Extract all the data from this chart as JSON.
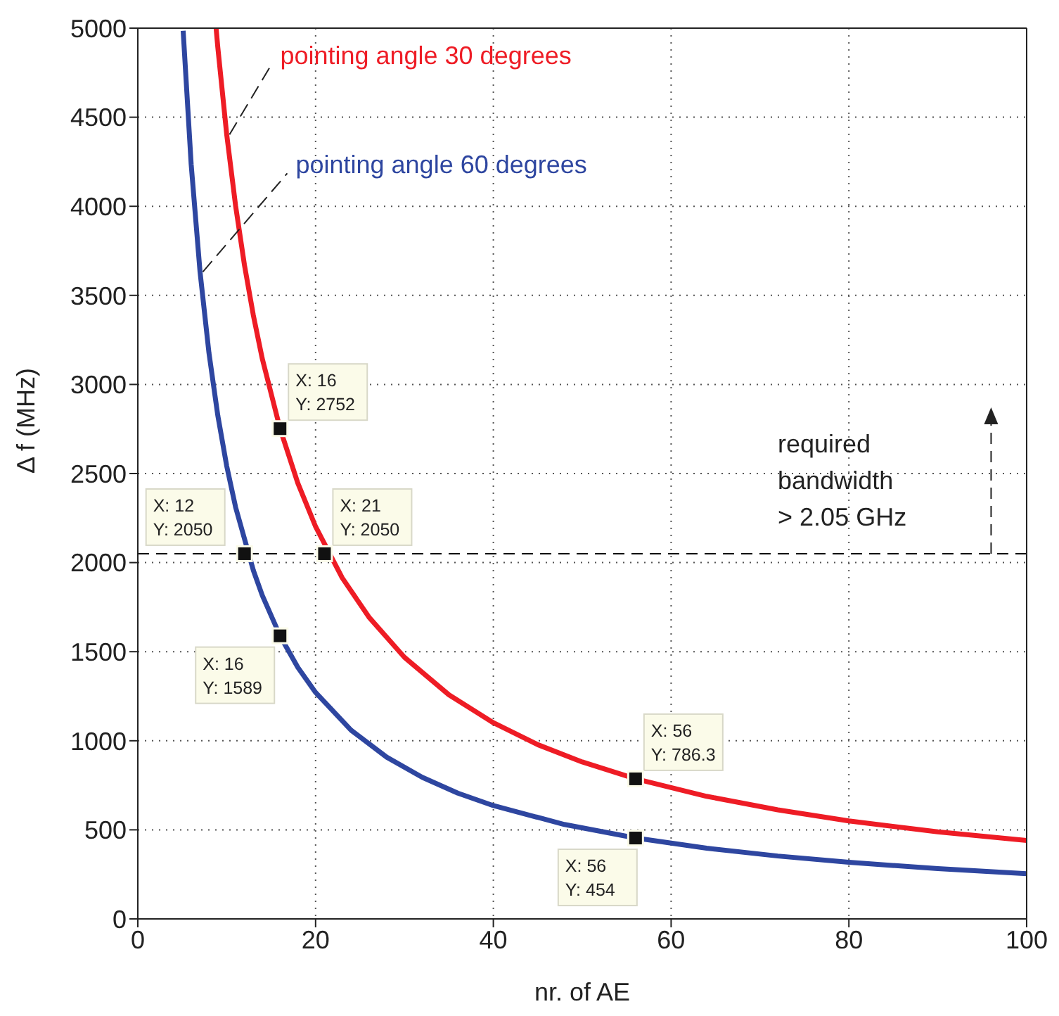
{
  "chart_data": {
    "type": "line",
    "xlabel": "nr. of AE",
    "ylabel": "Δ f (MHz)",
    "xlim": [
      0,
      100
    ],
    "xticks": [
      0,
      20,
      40,
      60,
      80,
      100
    ],
    "ylim": [
      0,
      5000
    ],
    "yticks": [
      0,
      500,
      1000,
      1500,
      2000,
      2500,
      3000,
      3500,
      4000,
      4500,
      5000
    ],
    "grid": true,
    "marker": "none",
    "line_style": "solid",
    "series": [
      {
        "name": "pointing angle 30 degrees",
        "color": "#ee1c25",
        "x": [
          8.81,
          9,
          10,
          11,
          12,
          13,
          14,
          16,
          18,
          20,
          23,
          26,
          30,
          35,
          40,
          45,
          50,
          56,
          64,
          72,
          80,
          90,
          100
        ],
        "values": [
          4998,
          4892,
          4403,
          4003,
          3669,
          3387,
          3145,
          2752,
          2446,
          2202,
          1914,
          1694,
          1468,
          1258,
          1101,
          978,
          881,
          786.3,
          688,
          612,
          550,
          489,
          440
        ]
      },
      {
        "name": "pointing angle 60 degrees",
        "color": "#2e46a0",
        "x": [
          5.1,
          6,
          7,
          8,
          9,
          10,
          11,
          13,
          14,
          16,
          18,
          20,
          24,
          28,
          32,
          36,
          40,
          48,
          56,
          64,
          72,
          80,
          90,
          100
        ],
        "values": [
          4985,
          4237,
          3632,
          3178,
          2825,
          2542,
          2311,
          1956,
          1816,
          1589,
          1412,
          1271,
          1059,
          908,
          795,
          706,
          636,
          530,
          454,
          397,
          353,
          318,
          282,
          254
        ]
      }
    ],
    "ref_lines": [
      {
        "axis": "y",
        "value": 2050,
        "label": "required\nbandwidth\n> 2.05 GHz",
        "color": "#000000",
        "line_style": "dashed"
      }
    ],
    "annotations": [
      {
        "text": "X: 16\nY: 2752",
        "x": 16,
        "y": 2752
      },
      {
        "text": "X: 12\nY: 2050",
        "x": 12,
        "y": 2050
      },
      {
        "text": "X: 21\nY: 2050",
        "x": 21,
        "y": 2050
      },
      {
        "text": "X: 16\nY: 1589",
        "x": 16,
        "y": 1589
      },
      {
        "text": "X: 56\nY: 786.3",
        "x": 56,
        "y": 786.3
      },
      {
        "text": "X: 56\nY: 454",
        "x": 56,
        "y": 454
      }
    ]
  }
}
